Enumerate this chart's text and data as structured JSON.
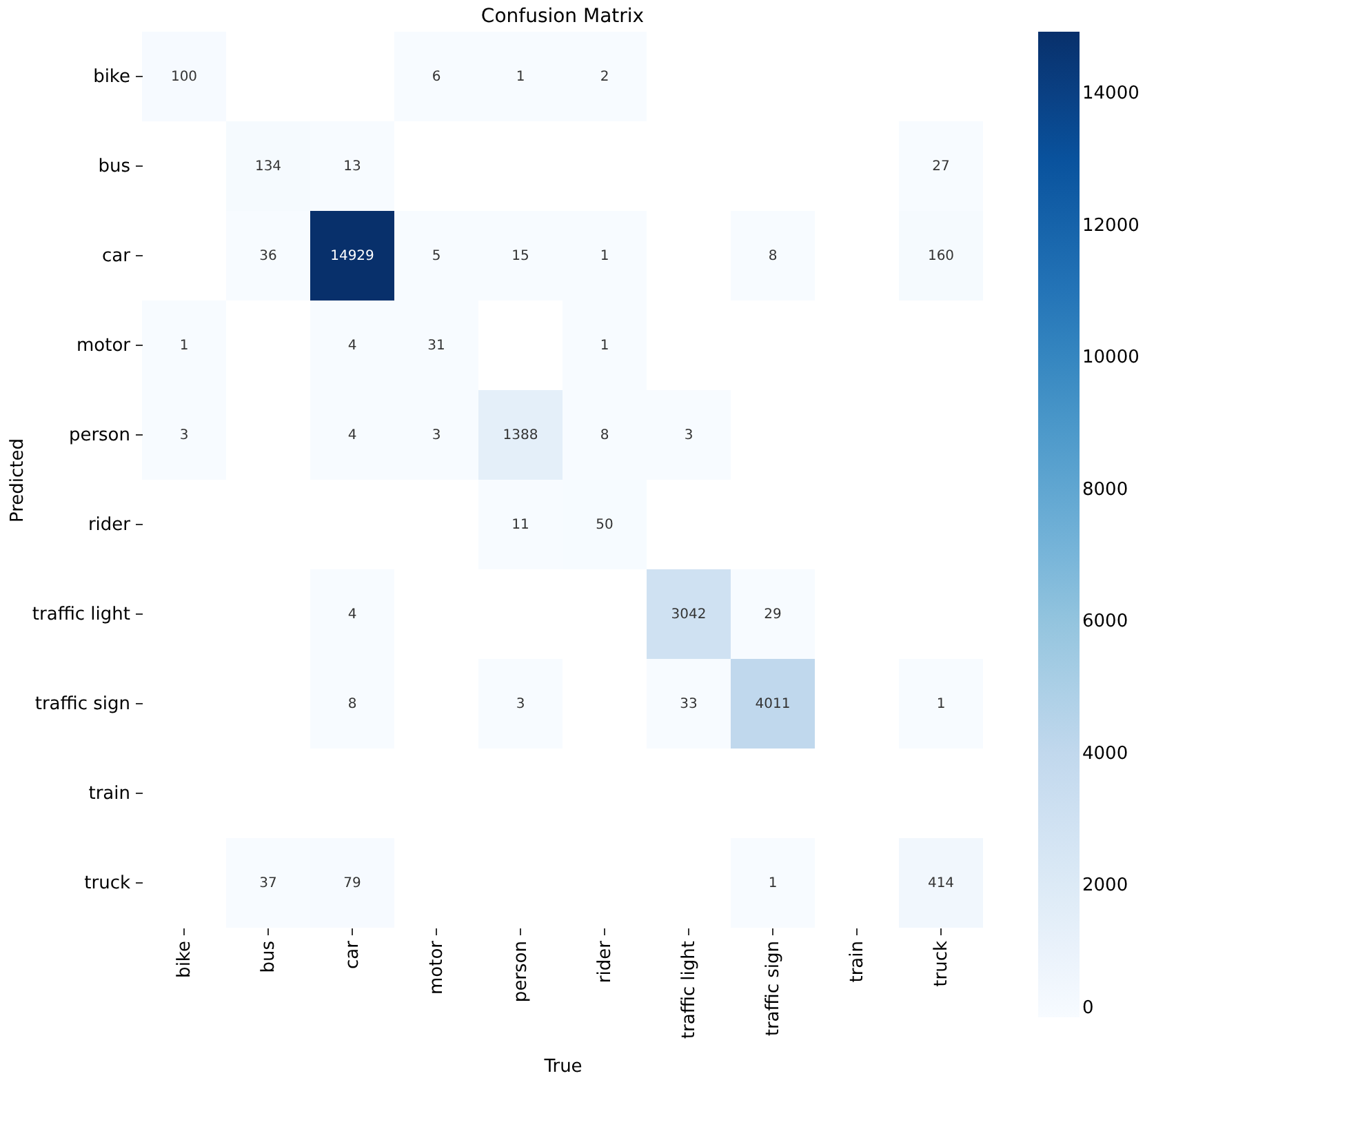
{
  "chart_data": {
    "type": "heatmap",
    "title": "Confusion Matrix",
    "xlabel": "True",
    "ylabel": "Predicted",
    "categories": [
      "bike",
      "bus",
      "car",
      "motor",
      "person",
      "rider",
      "traffic light",
      "traffic sign",
      "train",
      "truck"
    ],
    "y_categories": [
      "bike",
      "bus",
      "car",
      "motor",
      "person",
      "rider",
      "traffic light",
      "traffic sign",
      "train",
      "truck"
    ],
    "cells": [
      [
        100,
        null,
        null,
        6,
        1,
        2,
        null,
        null,
        null,
        null
      ],
      [
        null,
        134,
        13,
        null,
        null,
        null,
        null,
        null,
        null,
        27
      ],
      [
        null,
        36,
        14929,
        5,
        15,
        1,
        null,
        8,
        null,
        160
      ],
      [
        1,
        null,
        4,
        31,
        null,
        1,
        null,
        null,
        null,
        null
      ],
      [
        3,
        null,
        4,
        3,
        1388,
        8,
        3,
        null,
        null,
        null
      ],
      [
        null,
        null,
        null,
        null,
        11,
        50,
        null,
        null,
        null,
        null
      ],
      [
        null,
        null,
        4,
        null,
        null,
        null,
        3042,
        29,
        null,
        null
      ],
      [
        null,
        null,
        8,
        null,
        3,
        null,
        33,
        4011,
        null,
        1
      ],
      [
        null,
        null,
        null,
        null,
        null,
        null,
        null,
        null,
        null,
        null
      ],
      [
        null,
        37,
        79,
        null,
        null,
        null,
        null,
        1,
        null,
        414
      ]
    ],
    "clim": [
      0,
      14929
    ],
    "cticks": [
      0,
      2000,
      4000,
      6000,
      8000,
      10000,
      12000,
      14000
    ],
    "data_labels": true
  }
}
